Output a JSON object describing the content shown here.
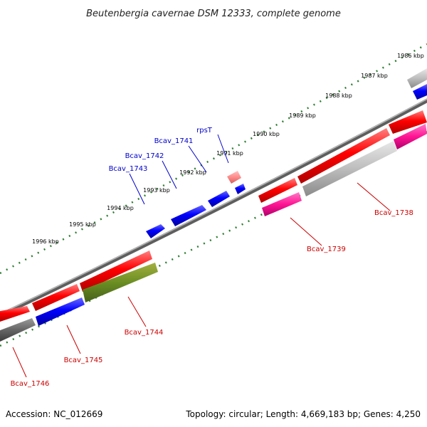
{
  "title": "Beutenbergia cavernae DSM 12333, complete genome",
  "footer": {
    "accession": "Accession: NC_012669",
    "stats": "Topology: circular; Length: 4,669,183 bp; Genes: 4,250"
  },
  "colors": {
    "forward_label": "#0000cc",
    "reverse_label": "#cc0000",
    "tick": "#2e7d32",
    "backbone": "#7a7a7a"
  },
  "ticks": [
    {
      "label": "1986 kbp"
    },
    {
      "label": "1987 kbp"
    },
    {
      "label": "1988 kbp"
    },
    {
      "label": "1989 kbp"
    },
    {
      "label": "1990 kbp"
    },
    {
      "label": "1991 kbp"
    },
    {
      "label": "1992 kbp"
    },
    {
      "label": "1993 kbp"
    },
    {
      "label": "1994 kbp"
    },
    {
      "label": "1995 kbp"
    },
    {
      "label": "1996 kbp"
    }
  ],
  "genes": [
    {
      "name": "Bcav_1738",
      "strand": "reverse"
    },
    {
      "name": "Bcav_1739",
      "strand": "reverse"
    },
    {
      "name": "rpsT",
      "strand": "forward"
    },
    {
      "name": "Bcav_1741",
      "strand": "forward"
    },
    {
      "name": "Bcav_1742",
      "strand": "forward"
    },
    {
      "name": "Bcav_1743",
      "strand": "forward"
    },
    {
      "name": "Bcav_1744",
      "strand": "reverse"
    },
    {
      "name": "Bcav_1745",
      "strand": "reverse"
    },
    {
      "name": "Bcav_1746",
      "strand": "reverse"
    }
  ]
}
